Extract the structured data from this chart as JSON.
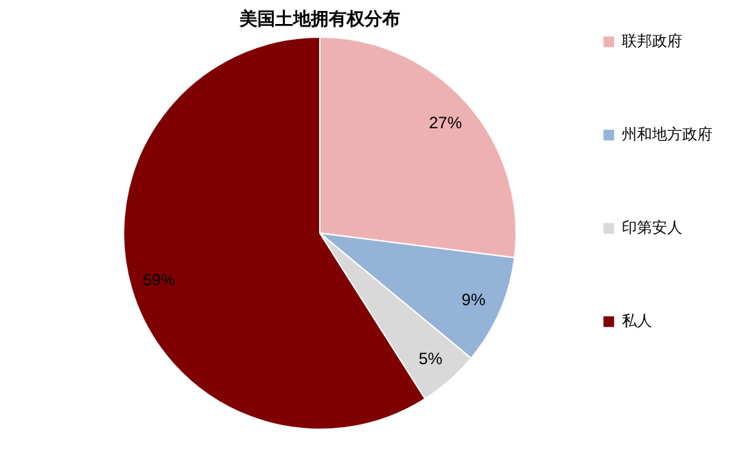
{
  "chart_data": {
    "type": "pie",
    "title": "美国土地拥有权分布",
    "categories": [
      "联邦政府",
      "州和地方政府",
      "印第安人",
      "私人"
    ],
    "values": [
      27,
      9,
      5,
      59
    ],
    "value_labels": [
      "27%",
      "9%",
      "5%",
      "59%"
    ],
    "colors": [
      "#eeb1b1",
      "#95b3d7",
      "#d9d9d9",
      "#7f0000"
    ],
    "legend": "right"
  }
}
